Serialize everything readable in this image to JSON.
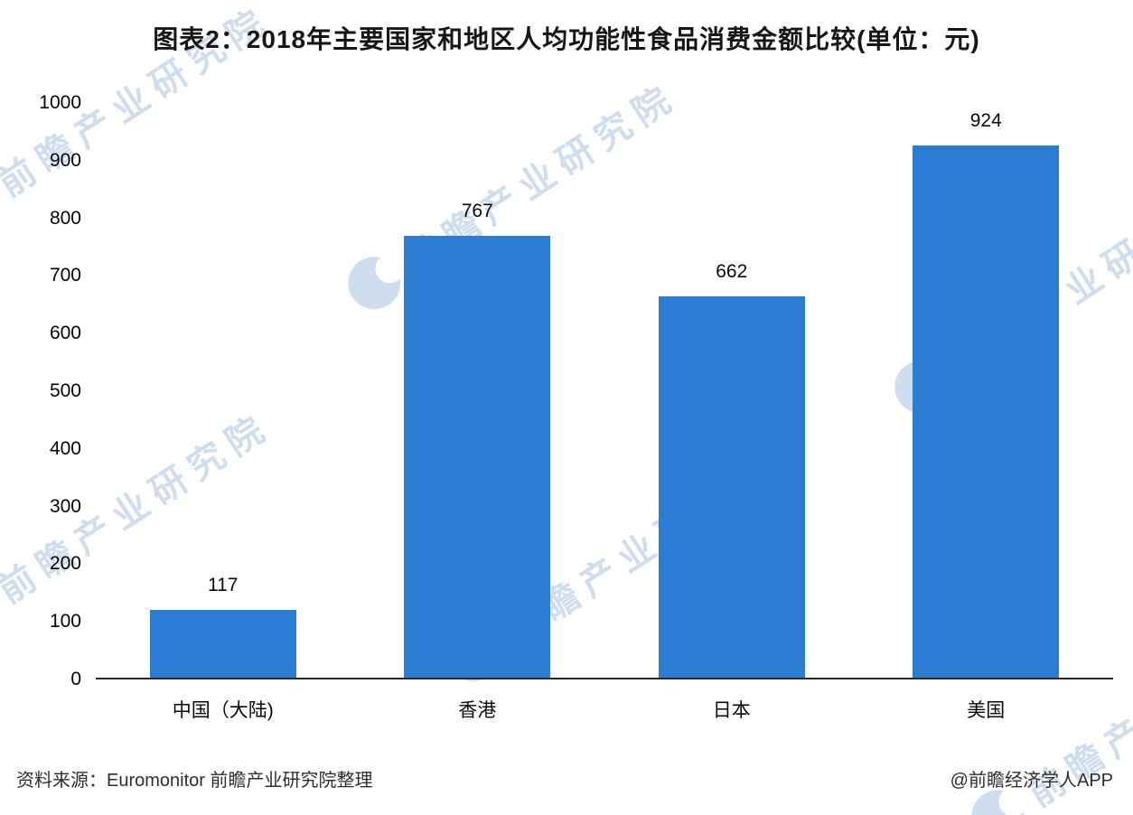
{
  "title": "图表2：2018年主要国家和地区人均功能性食品消费金额比较(单位：元)",
  "watermark": {
    "text": "前瞻产业研究院"
  },
  "colors": {
    "bar": "#2b7cd3",
    "axis": "#262626",
    "watermark": "#6092c7"
  },
  "chart_data": {
    "type": "bar",
    "categories": [
      "中国（大陆)",
      "香港",
      "日本",
      "美国"
    ],
    "values": [
      117,
      767,
      662,
      924
    ],
    "title": "图表2：2018年主要国家和地区人均功能性食品消费金额比较(单位：元)",
    "xlabel": "",
    "ylabel": "",
    "ylim": [
      0,
      1000
    ],
    "ytick_step": 100,
    "grid": false,
    "legend": false,
    "unit_label": "元"
  },
  "footer": {
    "source": "资料来源：Euromonitor 前瞻产业研究院整理",
    "credit": "@前瞻经济学人APP"
  }
}
